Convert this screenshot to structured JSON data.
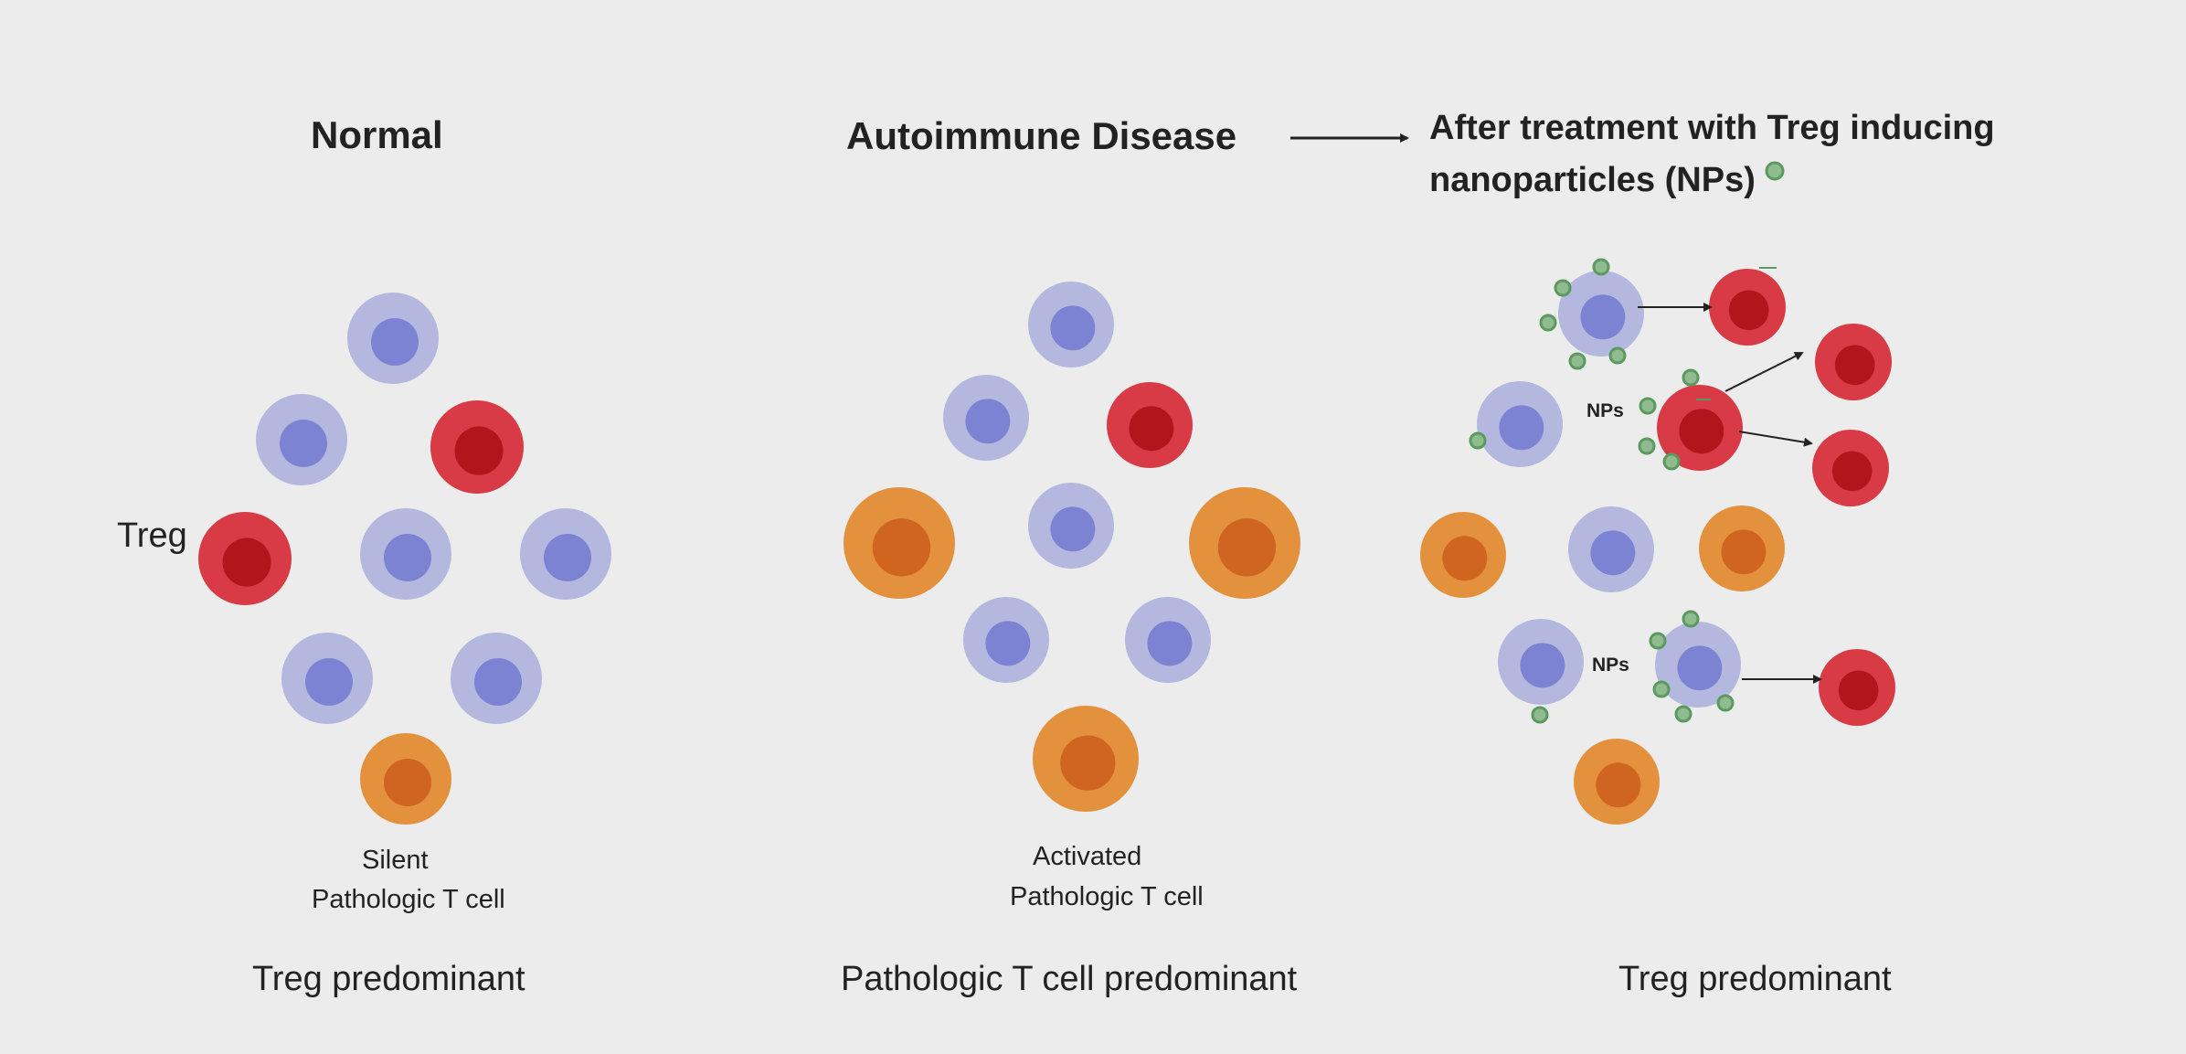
{
  "panels": {
    "normal": {
      "title": "Normal",
      "treg_label": "Treg",
      "caption_line1": "Silent",
      "caption_line2": "Pathologic T cell",
      "bottom": "Treg predominant"
    },
    "disease": {
      "title": "Autoimmune Disease",
      "caption_line1": "Activated",
      "caption_line2": "Pathologic T cell",
      "bottom": "Pathologic T cell predominant"
    },
    "treated": {
      "title_line1": "After treatment with Treg inducing",
      "title_line2": "nanoparticles (NPs)",
      "nps_label_1": "NPs",
      "nps_label_2": "NPs",
      "bottom": "Treg predominant"
    }
  },
  "colors": {
    "background": "#ececec",
    "naive_outer": "#b4b7de",
    "naive_inner": "#7b83d2",
    "treg_outer": "#d83b45",
    "treg_inner": "#b3151c",
    "patho_outer": "#e4913d",
    "patho_inner": "#cf6521",
    "nanoparticle": "#8fbb8f",
    "nanoparticle_edge": "#5b9a5e"
  },
  "legend_icon": "nanoparticle-icon"
}
